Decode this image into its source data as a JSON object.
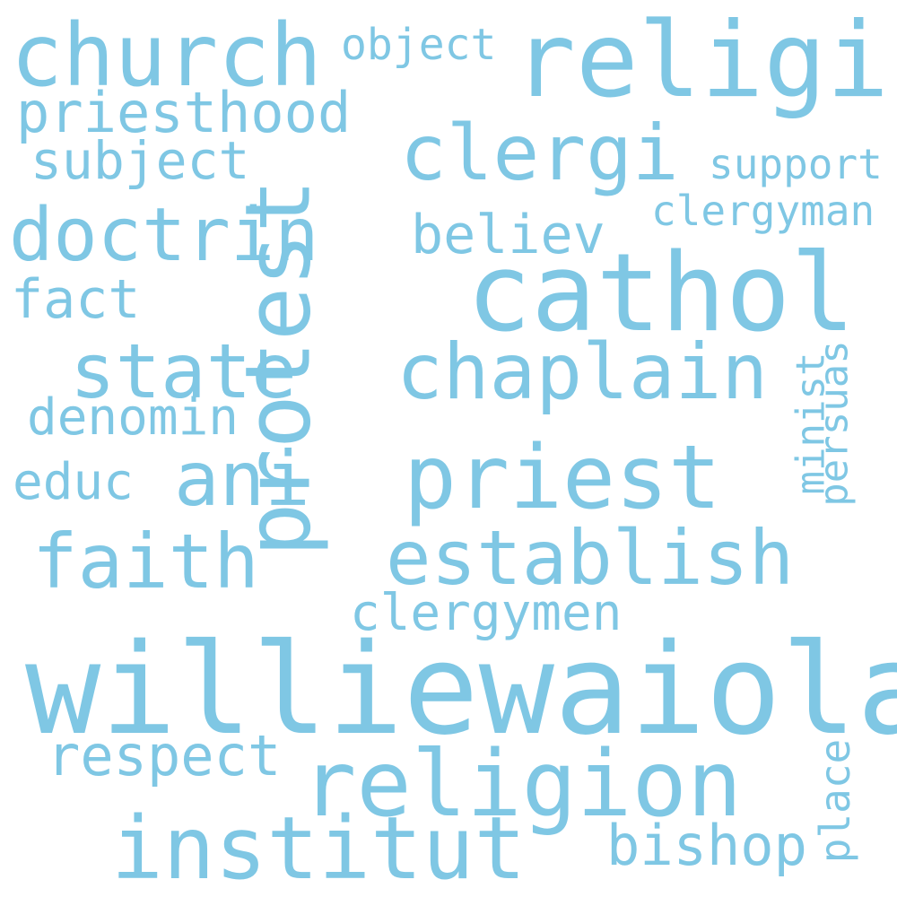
{
  "color": "#7fc7e4",
  "words": {
    "williewaiola": "williewaiola",
    "cathol": "cathol",
    "protest": "protest",
    "religi": "religi",
    "church": "church",
    "religion": "religion",
    "institut": "institut",
    "priest": "priest",
    "chaplain": "chaplain",
    "establish": "establish",
    "clergi": "clergi",
    "state": "state",
    "faith": "faith",
    "doctrin": "doctrin",
    "ani": "ani",
    "priesthood": "priesthood",
    "subject": "subject",
    "object": "object",
    "believ": "believ",
    "support": "support",
    "clergyman": "clergyman",
    "fact": "fact",
    "denomin": "denomin",
    "educ": "educ",
    "minist": "minist",
    "persuas": "persuas",
    "clergymen": "clergymen",
    "respect": "respect",
    "bishop": "bishop",
    "place": "place"
  }
}
